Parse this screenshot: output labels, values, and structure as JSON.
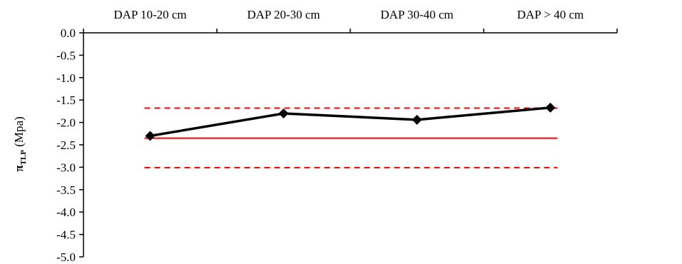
{
  "chart_data": {
    "type": "line",
    "categories": [
      "DAP 10-20 cm",
      "DAP 20-30 cm",
      "DAP 30-40 cm",
      "DAP > 40 cm"
    ],
    "series": [
      {
        "values": [
          -2.3,
          -1.8,
          -1.94,
          -1.67
        ],
        "color": "#000000",
        "marker": "diamond"
      }
    ],
    "reference_lines": [
      {
        "value": -2.35,
        "style": "solid",
        "color": "#ff0000"
      },
      {
        "value": -1.68,
        "style": "dashed",
        "color": "#ff0000"
      },
      {
        "value": -3.01,
        "style": "dashed",
        "color": "#ff0000"
      }
    ],
    "ylabel": {
      "symbol": "π",
      "subscript": "TLP",
      "rest": " (Mpa)"
    },
    "ylim": [
      -5.0,
      0.0
    ],
    "yticks": [
      "0.0",
      "-0.5",
      "-1.0",
      "-1.5",
      "-2.0",
      "-2.5",
      "-3.0",
      "-3.5",
      "-4.0",
      "-4.5",
      "-5.0"
    ],
    "xaxis_position": "top",
    "grid": false
  }
}
